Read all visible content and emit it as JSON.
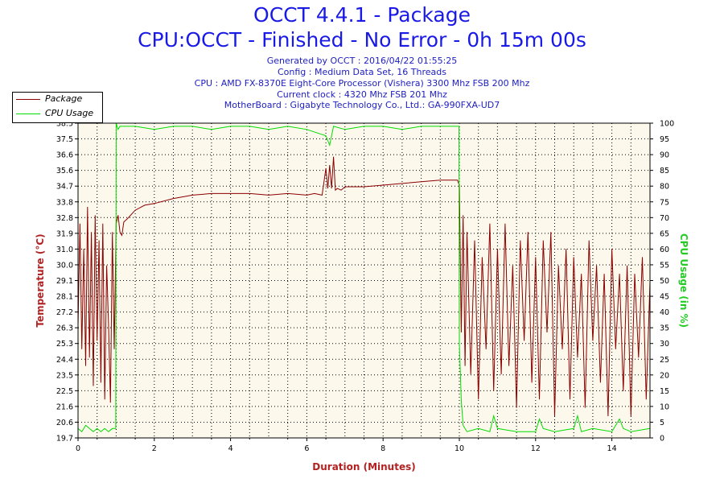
{
  "chart_data": {
    "type": "line",
    "title": "OCCT 4.4.1 - Package",
    "subtitle": "CPU:OCCT - Finished - No Error - 0h 15m 00s",
    "info_lines": [
      "Generated by OCCT : 2016/04/22 01:55:25",
      "Config : Medium Data Set, 16 Threads",
      "CPU : AMD FX-8370E Eight-Core Processor (Vishera) 3300 Mhz FSB 200 Mhz",
      "Current clock : 4320 Mhz FSB 201 Mhz",
      "MotherBoard : Gigabyte Technology Co., Ltd.: GA-990FXA-UD7"
    ],
    "xlabel": "Duration (Minutes)",
    "ylabel_left": "Temperature (°C)",
    "ylabel_right": "CPU Usage (in %)",
    "xlim": [
      0,
      15
    ],
    "ylim_left": [
      19.7,
      38.5
    ],
    "ylim_right": [
      0,
      100
    ],
    "x_ticks": [
      "0",
      "2",
      "4",
      "6",
      "8",
      "10",
      "12",
      "14"
    ],
    "y_ticks_left": [
      "38.5",
      "37.5",
      "36.6",
      "35.6",
      "34.7",
      "33.8",
      "32.8",
      "31.9",
      "31.0",
      "30.0",
      "29.1",
      "28.1",
      "27.2",
      "26.3",
      "25.3",
      "24.4",
      "23.5",
      "22.5",
      "21.6",
      "20.6",
      "19.7"
    ],
    "y_ticks_right": [
      "100",
      "95",
      "90",
      "85",
      "80",
      "75",
      "70",
      "65",
      "60",
      "55",
      "50",
      "45",
      "40",
      "35",
      "30",
      "25",
      "20",
      "15",
      "10",
      "5",
      "0"
    ],
    "grid": true,
    "legend_position": "top-left",
    "series": [
      {
        "name": "Package",
        "axis": "left",
        "color": "#8b0000",
        "x": [
          0,
          0.05,
          0.1,
          0.15,
          0.2,
          0.25,
          0.3,
          0.35,
          0.4,
          0.45,
          0.5,
          0.55,
          0.6,
          0.65,
          0.7,
          0.75,
          0.8,
          0.85,
          0.9,
          0.95,
          1.0,
          1.05,
          1.1,
          1.15,
          1.2,
          1.3,
          1.5,
          1.75,
          2.0,
          2.5,
          3.0,
          3.5,
          4.0,
          4.5,
          5.0,
          5.5,
          6.0,
          6.2,
          6.4,
          6.5,
          6.55,
          6.6,
          6.65,
          6.7,
          6.75,
          6.8,
          6.9,
          7.0,
          7.5,
          8.0,
          8.5,
          9.0,
          9.5,
          9.95,
          10.0,
          10.05,
          10.1,
          10.15,
          10.2,
          10.3,
          10.4,
          10.5,
          10.6,
          10.7,
          10.8,
          10.9,
          11.0,
          11.1,
          11.2,
          11.3,
          11.4,
          11.5,
          11.6,
          11.7,
          11.8,
          11.9,
          12.0,
          12.1,
          12.2,
          12.3,
          12.4,
          12.5,
          12.6,
          12.7,
          12.8,
          12.9,
          13.0,
          13.1,
          13.2,
          13.3,
          13.4,
          13.5,
          13.6,
          13.7,
          13.8,
          13.9,
          14.0,
          14.1,
          14.2,
          14.3,
          14.4,
          14.5,
          14.6,
          14.7,
          14.8,
          14.9,
          15.0
        ],
        "values": [
          26.4,
          32.5,
          25.0,
          31.0,
          24.0,
          33.5,
          24.5,
          32.0,
          22.8,
          33.0,
          25.5,
          31.5,
          23.0,
          32.5,
          22.0,
          30.0,
          26.5,
          21.8,
          32.0,
          25.0,
          32.5,
          33.0,
          32.0,
          31.8,
          32.6,
          32.8,
          33.3,
          33.6,
          33.7,
          34.0,
          34.2,
          34.3,
          34.3,
          34.3,
          34.2,
          34.3,
          34.2,
          34.3,
          34.2,
          35.8,
          34.6,
          36.0,
          34.6,
          36.5,
          34.5,
          34.6,
          34.5,
          34.7,
          34.7,
          34.8,
          34.9,
          35.0,
          35.1,
          35.1,
          34.8,
          26.0,
          33.0,
          24.0,
          32.0,
          23.5,
          31.5,
          22.0,
          30.5,
          25.0,
          32.5,
          22.5,
          31.0,
          23.5,
          32.5,
          24.0,
          30.0,
          21.5,
          31.5,
          25.5,
          32.0,
          23.0,
          30.5,
          22.0,
          31.5,
          26.0,
          32.0,
          21.0,
          30.0,
          25.0,
          31.0,
          22.0,
          30.5,
          24.5,
          29.5,
          21.5,
          31.5,
          25.5,
          30.0,
          23.0,
          29.5,
          21.0,
          31.0,
          25.0,
          29.5,
          22.5,
          30.0,
          21.0,
          29.5,
          24.5,
          30.5,
          22.0,
          29.0
        ]
      },
      {
        "name": "CPU Usage",
        "axis": "right",
        "color": "#00dd00",
        "x": [
          0,
          0.1,
          0.2,
          0.3,
          0.4,
          0.5,
          0.6,
          0.7,
          0.8,
          0.9,
          0.99,
          1.0,
          1.05,
          1.1,
          1.5,
          2.0,
          2.5,
          3.0,
          3.5,
          4.0,
          4.5,
          5.0,
          5.5,
          6.0,
          6.5,
          6.6,
          6.7,
          7.0,
          7.5,
          8.0,
          8.5,
          9.0,
          9.5,
          9.95,
          9.99,
          10.0,
          10.05,
          10.1,
          10.2,
          10.5,
          10.8,
          10.9,
          11.0,
          11.5,
          12.0,
          12.1,
          12.2,
          12.5,
          13.0,
          13.1,
          13.2,
          13.5,
          14.0,
          14.2,
          14.3,
          14.5,
          15.0
        ],
        "values": [
          3,
          2,
          4,
          3,
          2,
          3,
          2,
          3,
          2,
          3,
          3,
          100,
          98,
          99,
          99,
          98,
          99,
          99,
          98,
          99,
          99,
          98,
          99,
          98,
          96,
          93,
          99,
          98,
          99,
          99,
          98,
          99,
          99,
          99,
          99,
          30,
          12,
          4,
          2,
          3,
          2,
          7,
          3,
          2,
          2,
          6,
          3,
          2,
          3,
          7,
          2,
          3,
          2,
          6,
          3,
          2,
          3
        ]
      }
    ]
  }
}
